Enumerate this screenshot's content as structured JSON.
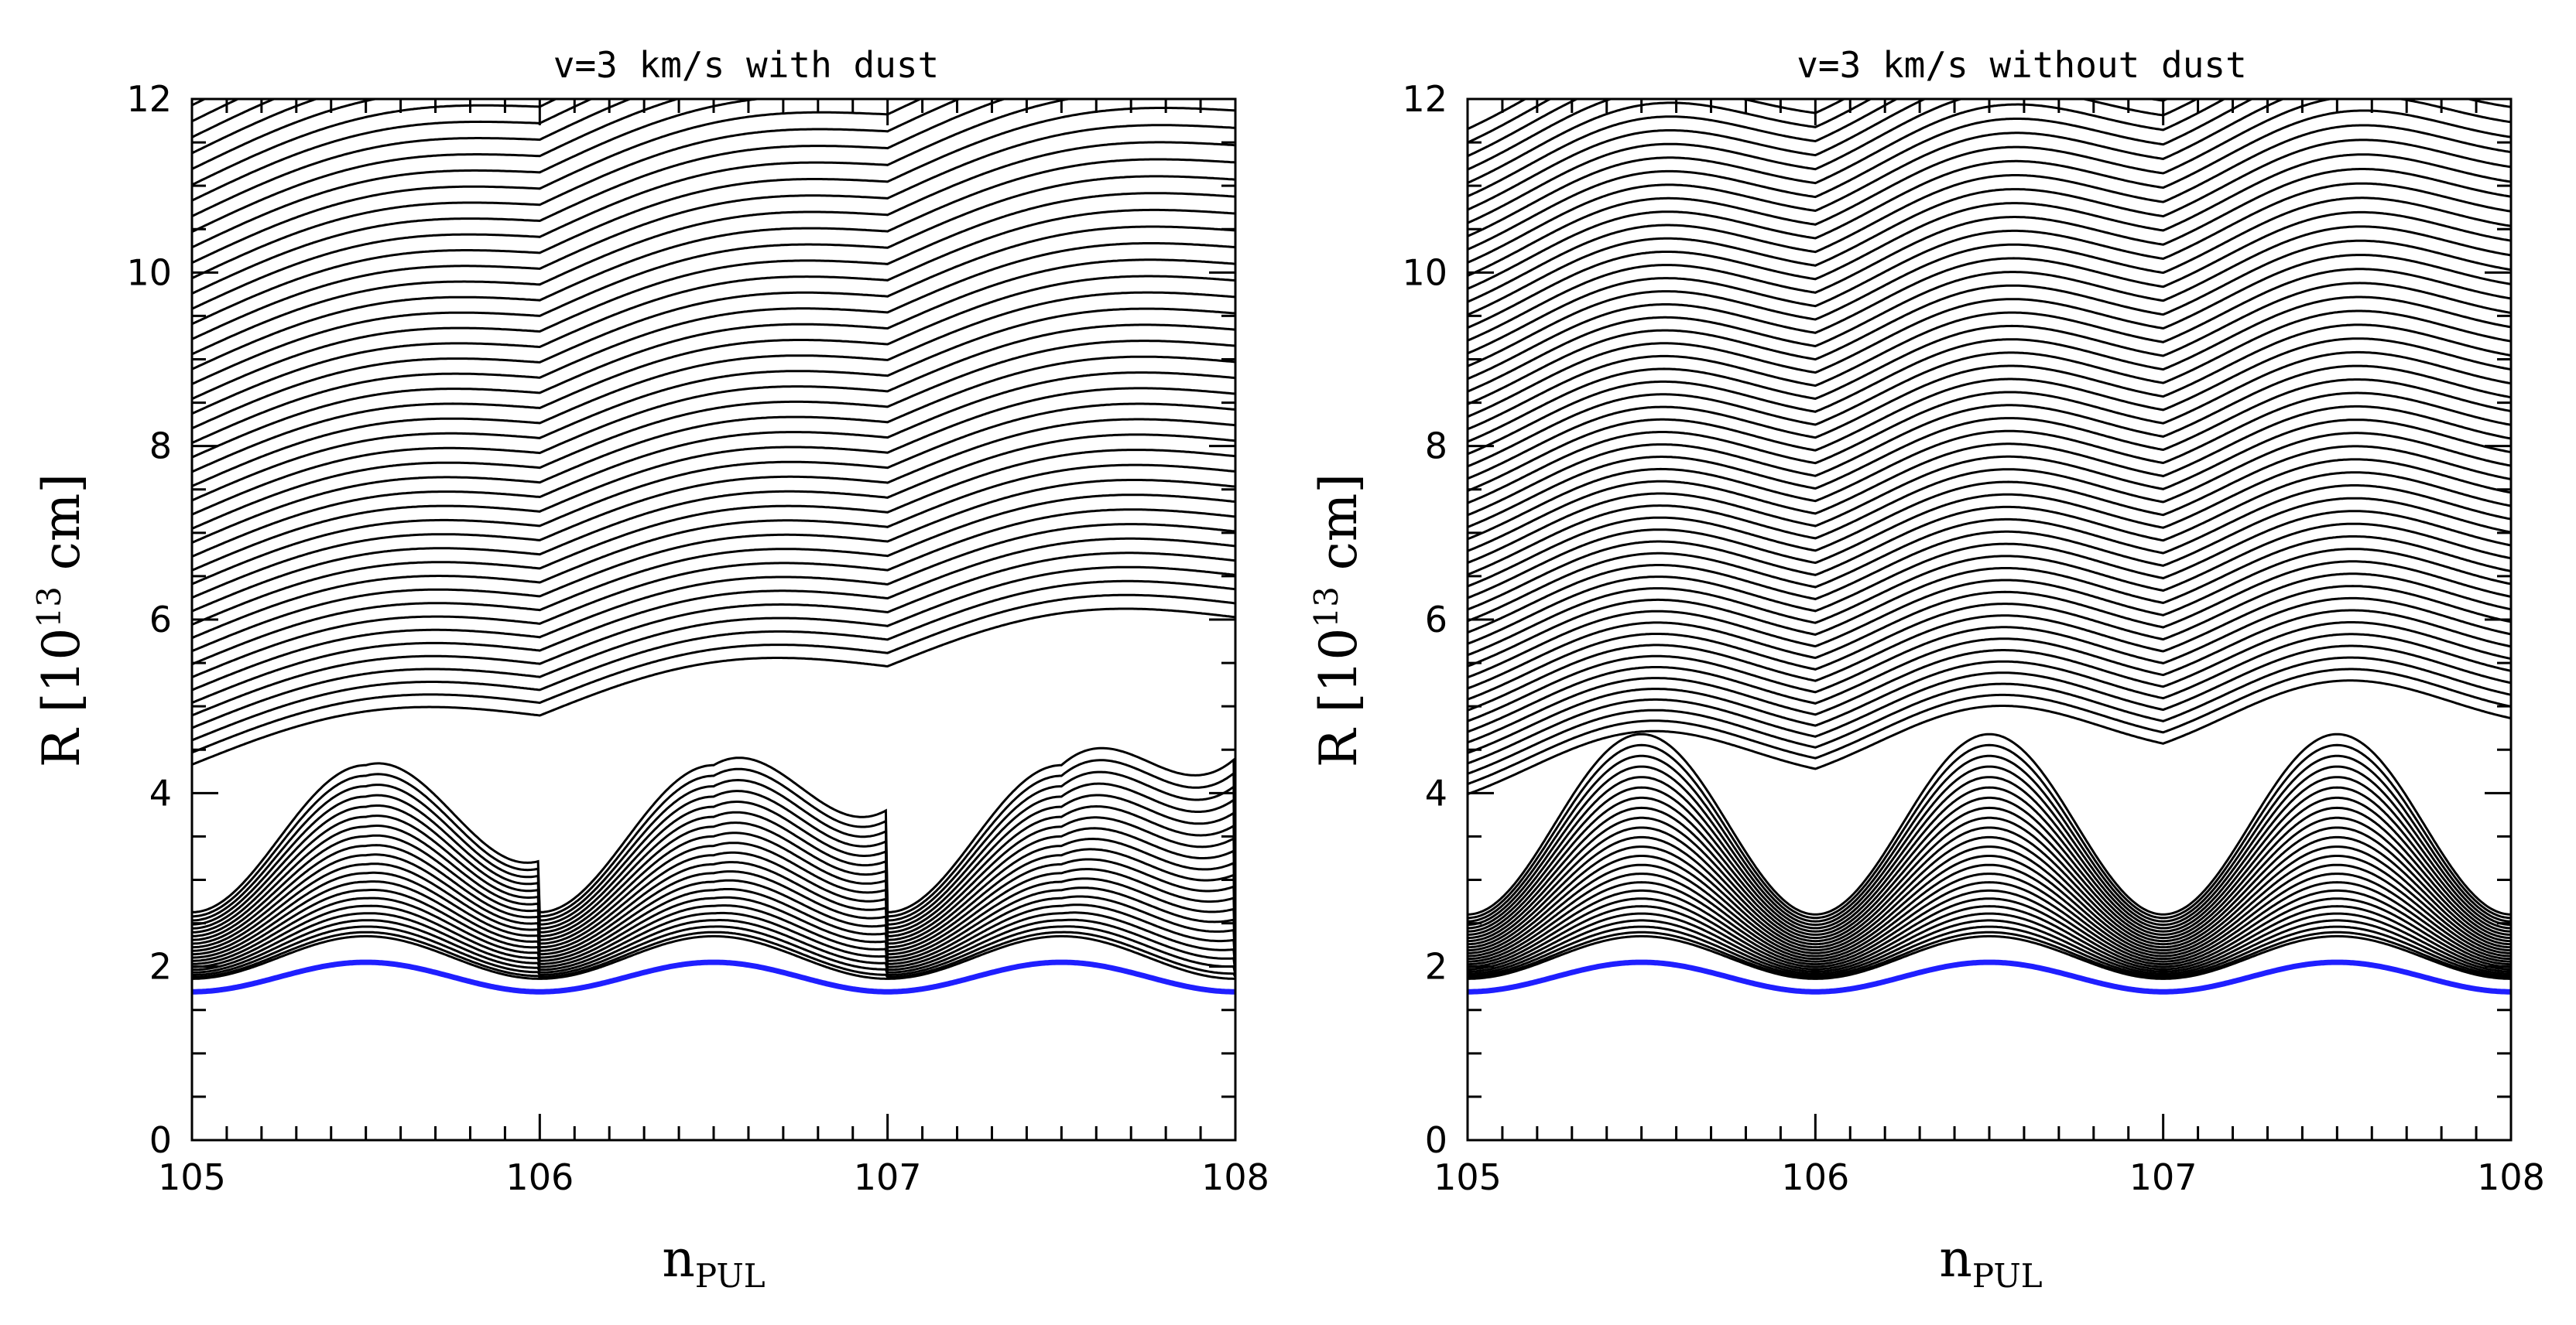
{
  "chart_data": [
    {
      "type": "line",
      "title": "v=3 km/s    with dust",
      "xlabel": "n",
      "xlabel_sub": "PUL",
      "ylabel_pre": "R  [10",
      "ylabel_sup": "13",
      "ylabel_post": "  cm]",
      "xlim": [
        105,
        108
      ],
      "ylim": [
        0,
        12
      ],
      "xticks": [
        105,
        106,
        107,
        108
      ],
      "yticks": [
        0,
        2,
        4,
        6,
        8,
        10,
        12
      ],
      "dust": true,
      "photosphere": {
        "name": "stellar radius",
        "color": "#1f1fff",
        "mean": 1.88,
        "amplitude": 0.17,
        "period": 1
      },
      "line_color": "#000000"
    },
    {
      "type": "line",
      "title": "v=3 km/s    without dust",
      "xlabel": "n",
      "xlabel_sub": "PUL",
      "ylabel_pre": "R  [10",
      "ylabel_sup": "13",
      "ylabel_post": "  cm]",
      "xlim": [
        105,
        108
      ],
      "ylim": [
        0,
        12
      ],
      "xticks": [
        105,
        106,
        107,
        108
      ],
      "yticks": [
        0,
        2,
        4,
        6,
        8,
        10,
        12
      ],
      "dust": false,
      "photosphere": {
        "name": "stellar radius",
        "color": "#1f1fff",
        "mean": 1.88,
        "amplitude": 0.17,
        "period": 1
      },
      "line_color": "#000000"
    }
  ]
}
